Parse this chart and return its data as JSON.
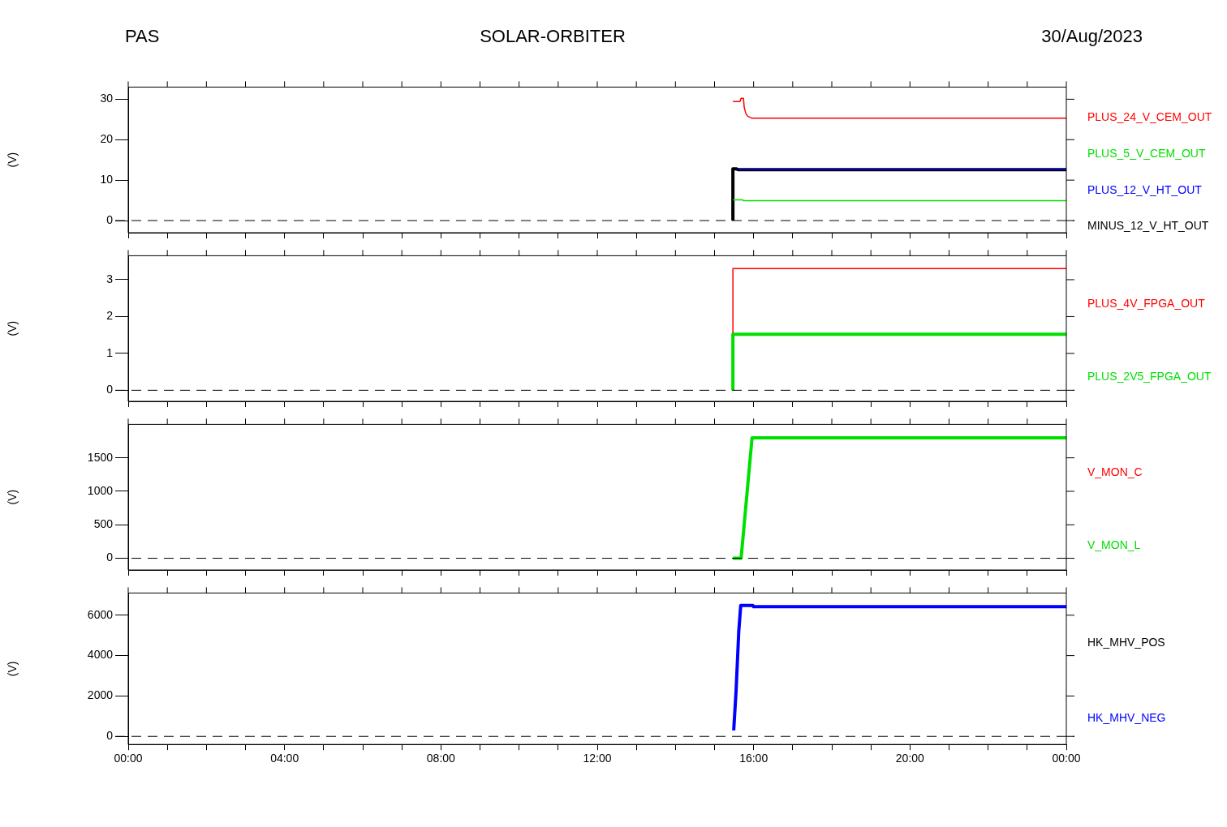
{
  "chart_data": [
    {
      "type": "line",
      "title": "SOLAR-ORBITER",
      "annotations": [
        "PAS",
        "30/Aug/2023"
      ],
      "ylabel": "(V)",
      "marker": "none",
      "legend": "right",
      "tick_labels": "y",
      "xlim": [
        0,
        24
      ],
      "xticks": [
        {
          "value": 0,
          "label": null
        },
        {
          "value": 1,
          "label": null
        },
        {
          "value": 2,
          "label": null
        },
        {
          "value": 3,
          "label": null
        },
        {
          "value": 4,
          "label": null
        },
        {
          "value": 5,
          "label": null
        },
        {
          "value": 6,
          "label": null
        },
        {
          "value": 7,
          "label": null
        },
        {
          "value": 8,
          "label": null
        },
        {
          "value": 9,
          "label": null
        },
        {
          "value": 10,
          "label": null
        },
        {
          "value": 11,
          "label": null
        },
        {
          "value": 12,
          "label": null
        },
        {
          "value": 13,
          "label": null
        },
        {
          "value": 14,
          "label": null
        },
        {
          "value": 15,
          "label": null
        },
        {
          "value": 16,
          "label": null
        },
        {
          "value": 17,
          "label": null
        },
        {
          "value": 18,
          "label": null
        },
        {
          "value": 19,
          "label": null
        },
        {
          "value": 20,
          "label": null
        },
        {
          "value": 21,
          "label": null
        },
        {
          "value": 22,
          "label": null
        },
        {
          "value": 23,
          "label": null
        },
        {
          "value": 24,
          "label": null
        }
      ],
      "ylim": [
        -3,
        33
      ],
      "yticks": [
        0,
        10,
        20,
        30
      ],
      "ref_lines": [
        {
          "axis": "y",
          "value": 0,
          "color": "#000000",
          "line_style": "dashed"
        }
      ],
      "series": [
        {
          "name": "PLUS_24_V_CEM_OUT",
          "color": "#ff0000",
          "x": [
            15.47,
            15.65,
            15.68,
            15.74,
            15.76,
            15.8,
            15.85,
            15.96,
            24
          ],
          "values": [
            29.4,
            29.4,
            30.2,
            30.2,
            28,
            26.5,
            25.8,
            25.3,
            25.3
          ]
        },
        {
          "name": "PLUS_5_V_CEM_OUT",
          "color": "#00e000",
          "x": [
            15.47,
            15.72,
            15.74,
            24
          ],
          "values": [
            5.1,
            5.1,
            4.9,
            4.9
          ]
        },
        {
          "name": "PLUS_12_V_HT_OUT",
          "color": "#0000ff",
          "x": [
            15.6,
            24
          ],
          "values": [
            12.6,
            12.6
          ]
        },
        {
          "name": "MINUS_12_V_HT_OUT",
          "color": "#000000",
          "x": [
            15.47,
            15.47,
            15.55,
            15.6,
            24
          ],
          "values": [
            0,
            12.8,
            12.8,
            12.6,
            12.6
          ]
        }
      ]
    },
    {
      "type": "line",
      "ylabel": "(V)",
      "marker": "none",
      "legend": "right",
      "tick_labels": "y",
      "xlim": [
        0,
        24
      ],
      "xticks": [
        {
          "value": 0,
          "label": null
        },
        {
          "value": 1,
          "label": null
        },
        {
          "value": 2,
          "label": null
        },
        {
          "value": 3,
          "label": null
        },
        {
          "value": 4,
          "label": null
        },
        {
          "value": 5,
          "label": null
        },
        {
          "value": 6,
          "label": null
        },
        {
          "value": 7,
          "label": null
        },
        {
          "value": 8,
          "label": null
        },
        {
          "value": 9,
          "label": null
        },
        {
          "value": 10,
          "label": null
        },
        {
          "value": 11,
          "label": null
        },
        {
          "value": 12,
          "label": null
        },
        {
          "value": 13,
          "label": null
        },
        {
          "value": 14,
          "label": null
        },
        {
          "value": 15,
          "label": null
        },
        {
          "value": 16,
          "label": null
        },
        {
          "value": 17,
          "label": null
        },
        {
          "value": 18,
          "label": null
        },
        {
          "value": 19,
          "label": null
        },
        {
          "value": 20,
          "label": null
        },
        {
          "value": 21,
          "label": null
        },
        {
          "value": 22,
          "label": null
        },
        {
          "value": 23,
          "label": null
        },
        {
          "value": 24,
          "label": null
        }
      ],
      "ylim": [
        -0.3,
        3.65
      ],
      "yticks": [
        0,
        1,
        2,
        3
      ],
      "ref_lines": [
        {
          "axis": "y",
          "value": 0,
          "color": "#000000",
          "line_style": "dashed"
        }
      ],
      "series": [
        {
          "name": "PLUS_4V_FPGA_OUT",
          "color": "#ff0000",
          "x": [
            15.47,
            15.47,
            24
          ],
          "values": [
            1.55,
            3.3,
            3.3
          ]
        },
        {
          "name": "PLUS_2V5_FPGA_OUT",
          "color": "#00e000",
          "x": [
            15.47,
            15.47,
            24
          ],
          "values": [
            0,
            1.52,
            1.52
          ]
        }
      ]
    },
    {
      "type": "line",
      "ylabel": "(V)",
      "marker": "none",
      "legend": "right",
      "tick_labels": "y",
      "xlim": [
        0,
        24
      ],
      "xticks": [
        {
          "value": 0,
          "label": null
        },
        {
          "value": 1,
          "label": null
        },
        {
          "value": 2,
          "label": null
        },
        {
          "value": 3,
          "label": null
        },
        {
          "value": 4,
          "label": null
        },
        {
          "value": 5,
          "label": null
        },
        {
          "value": 6,
          "label": null
        },
        {
          "value": 7,
          "label": null
        },
        {
          "value": 8,
          "label": null
        },
        {
          "value": 9,
          "label": null
        },
        {
          "value": 10,
          "label": null
        },
        {
          "value": 11,
          "label": null
        },
        {
          "value": 12,
          "label": null
        },
        {
          "value": 13,
          "label": null
        },
        {
          "value": 14,
          "label": null
        },
        {
          "value": 15,
          "label": null
        },
        {
          "value": 16,
          "label": null
        },
        {
          "value": 17,
          "label": null
        },
        {
          "value": 18,
          "label": null
        },
        {
          "value": 19,
          "label": null
        },
        {
          "value": 20,
          "label": null
        },
        {
          "value": 21,
          "label": null
        },
        {
          "value": 22,
          "label": null
        },
        {
          "value": 23,
          "label": null
        },
        {
          "value": 24,
          "label": null
        }
      ],
      "ylim": [
        -175,
        2000
      ],
      "yticks": [
        0,
        500,
        1000,
        1500
      ],
      "ref_lines": [
        {
          "axis": "y",
          "value": 0,
          "color": "#000000",
          "line_style": "dashed"
        }
      ],
      "series": [
        {
          "name": "V_MON_C",
          "color": "#ff0000",
          "values": [
            null
          ]
        },
        {
          "name": "V_MON_L",
          "color": "#00e000",
          "x": [
            15.47,
            15.68,
            15.96,
            24
          ],
          "values": [
            0,
            0,
            1800,
            1800
          ]
        }
      ]
    },
    {
      "type": "line",
      "ylabel": "(V)",
      "marker": "none",
      "legend": "right",
      "xlim": [
        0,
        24
      ],
      "xticks": [
        {
          "value": 0,
          "label": "00:00"
        },
        {
          "value": 1,
          "label": null
        },
        {
          "value": 2,
          "label": null
        },
        {
          "value": 3,
          "label": null
        },
        {
          "value": 4,
          "label": "04:00"
        },
        {
          "value": 5,
          "label": null
        },
        {
          "value": 6,
          "label": null
        },
        {
          "value": 7,
          "label": null
        },
        {
          "value": 8,
          "label": "08:00"
        },
        {
          "value": 9,
          "label": null
        },
        {
          "value": 10,
          "label": null
        },
        {
          "value": 11,
          "label": null
        },
        {
          "value": 12,
          "label": "12:00"
        },
        {
          "value": 13,
          "label": null
        },
        {
          "value": 14,
          "label": null
        },
        {
          "value": 15,
          "label": null
        },
        {
          "value": 16,
          "label": "16:00"
        },
        {
          "value": 17,
          "label": null
        },
        {
          "value": 18,
          "label": null
        },
        {
          "value": 19,
          "label": null
        },
        {
          "value": 20,
          "label": "20:00"
        },
        {
          "value": 21,
          "label": null
        },
        {
          "value": 22,
          "label": null
        },
        {
          "value": 23,
          "label": null
        },
        {
          "value": 24,
          "label": "00:00"
        }
      ],
      "ylim": [
        -400,
        7100
      ],
      "yticks": [
        0,
        2000,
        4000,
        6000
      ],
      "ref_lines": [
        {
          "axis": "y",
          "value": 0,
          "color": "#000000",
          "line_style": "dashed"
        }
      ],
      "series": [
        {
          "name": "HK_MHV_POS",
          "color": "#000000",
          "values": [
            null
          ]
        },
        {
          "name": "HK_MHV_NEG",
          "color": "#0000ff",
          "x": [
            15.49,
            15.55,
            15.62,
            15.67,
            15.98,
            16.0,
            24
          ],
          "values": [
            300,
            2200,
            5200,
            6480,
            6480,
            6420,
            6420
          ]
        }
      ]
    }
  ]
}
